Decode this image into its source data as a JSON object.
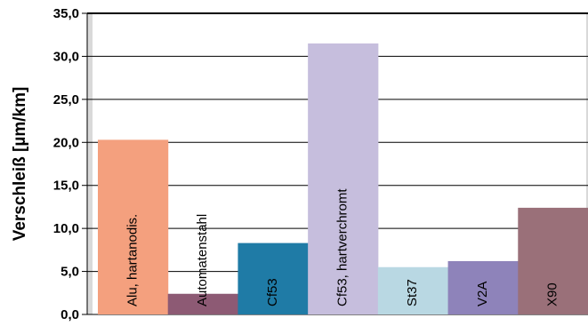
{
  "chart_data": {
    "type": "bar",
    "title": "",
    "xlabel": "",
    "ylabel": "Verschleiß [µm/km]",
    "ylim": [
      0,
      35
    ],
    "yticks": [
      "0,0",
      "5,0",
      "10,0",
      "15,0",
      "20,0",
      "25,0",
      "30,0",
      "35,0"
    ],
    "grid": true,
    "legend": "none",
    "categories": [
      "Alu, hartanodis.",
      "Automatenstahl",
      "Cf53",
      "Cf53, hartverchromt",
      "St37",
      "V2A",
      "X90"
    ],
    "values": [
      20.3,
      2.4,
      8.3,
      31.5,
      5.5,
      6.2,
      12.4
    ],
    "colors": [
      "#F4A07E",
      "#8D5A74",
      "#1F7BA6",
      "#C6BEDD",
      "#B9D8E3",
      "#8E83BA",
      "#9A7079"
    ],
    "background_color": "#D9D9D9"
  }
}
